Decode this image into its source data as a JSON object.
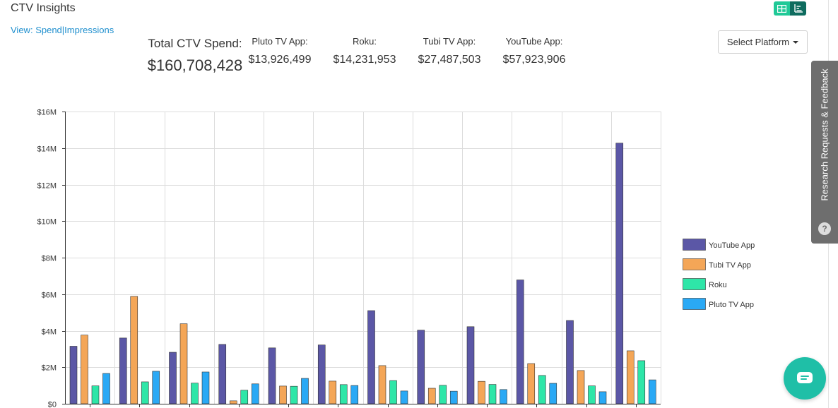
{
  "header": {
    "title": "CTV Insights"
  },
  "view": {
    "prefix": "View:",
    "spend": "Spend",
    "separator": "|",
    "impressions": "Impressions"
  },
  "summary": {
    "total_label": "Total CTV Spend:",
    "total_value": "$160,708,428",
    "platforms": [
      {
        "label": "Pluto TV App:",
        "value": "$13,926,499"
      },
      {
        "label": "Roku:",
        "value": "$14,231,953"
      },
      {
        "label": "Tubi TV App:",
        "value": "$27,487,503"
      },
      {
        "label": "YouTube App:",
        "value": "$57,923,906"
      }
    ]
  },
  "select_platform": {
    "label": "Select Platform"
  },
  "feedback": {
    "label": "Research Requests & Feedback",
    "icon_glyph": "?"
  },
  "colors": {
    "youtube": "#5b57a6",
    "tubi": "#f4a657",
    "roku": "#2ee6a8",
    "pluto": "#2aa9f5",
    "toggle_grid": "#20c997",
    "toggle_chart": "#0f6c5f"
  },
  "chart_data": {
    "type": "bar",
    "title": "",
    "xlabel": "",
    "ylabel": "",
    "ylim": [
      0,
      16000000
    ],
    "y_ticks": [
      0,
      2000000,
      4000000,
      6000000,
      8000000,
      10000000,
      12000000,
      14000000,
      16000000
    ],
    "y_tick_labels": [
      "$0",
      "$2M",
      "$4M",
      "$6M",
      "$8M",
      "$10M",
      "$12M",
      "$14M",
      "$16M"
    ],
    "categories": [
      "",
      "",
      "",
      "",
      "",
      "",
      "",
      "",
      "",
      "",
      "",
      ""
    ],
    "series": [
      {
        "name": "YouTube App",
        "color": "#5b57a6",
        "values": [
          3150000,
          3600000,
          2820000,
          3250000,
          3060000,
          3220000,
          5100000,
          4030000,
          4220000,
          6780000,
          4560000,
          14270000
        ]
      },
      {
        "name": "Tubi TV App",
        "color": "#f4a657",
        "values": [
          3760000,
          5880000,
          4380000,
          160000,
          970000,
          1240000,
          2090000,
          850000,
          1230000,
          2200000,
          1820000,
          2900000
        ]
      },
      {
        "name": "Roku",
        "color": "#2ee6a8",
        "values": [
          980000,
          1200000,
          1130000,
          740000,
          960000,
          1050000,
          1270000,
          1010000,
          1060000,
          1550000,
          980000,
          2360000
        ]
      },
      {
        "name": "Pluto TV App",
        "color": "#2aa9f5",
        "values": [
          1660000,
          1780000,
          1740000,
          1090000,
          1390000,
          1000000,
          700000,
          690000,
          780000,
          1120000,
          660000,
          1310000
        ]
      }
    ],
    "legend_position": "right",
    "grid": true
  }
}
